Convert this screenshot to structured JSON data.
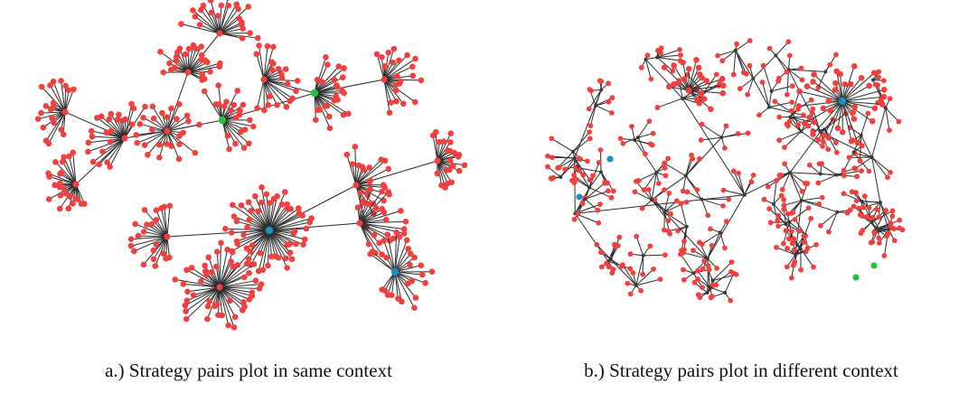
{
  "captions": {
    "left": "a.) Strategy pairs plot in same context",
    "right": "b.) Strategy pairs plot in different context"
  },
  "colors": {
    "leaf_node": "#f0403f",
    "blue_node": "#1f8fbf",
    "green_node": "#22c23a",
    "edge": "#2b2b2b"
  },
  "panels": [
    {
      "id": "a",
      "layout": "clustered-star-network"
    },
    {
      "id": "b",
      "layout": "circular-tree-network"
    }
  ]
}
